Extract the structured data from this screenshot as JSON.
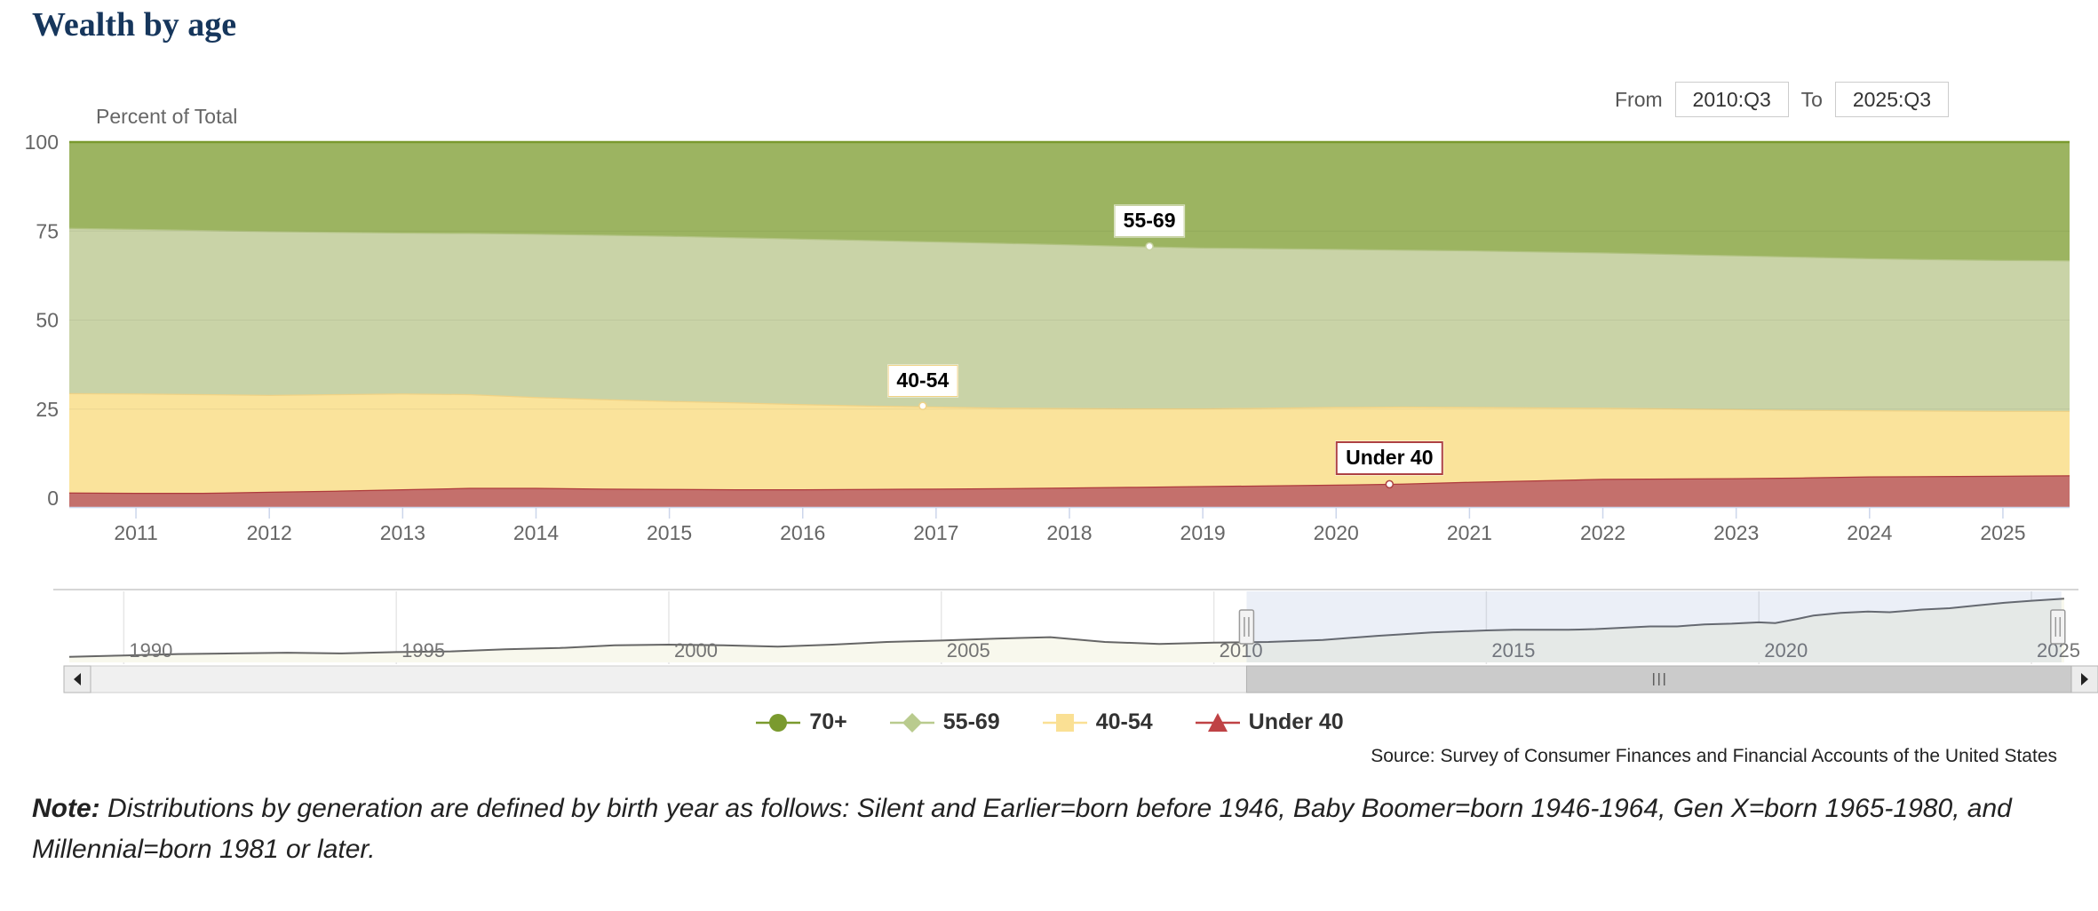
{
  "header": {
    "title": "Wealth by age"
  },
  "controls": {
    "from_label": "From",
    "from_value": "2010:Q3",
    "to_label": "To",
    "to_value": "2025:Q3"
  },
  "chart_data": {
    "type": "area",
    "stacking": "percent",
    "title": "Wealth by age",
    "unit_label": "Percent of Total",
    "ylim": [
      0,
      100
    ],
    "y_ticks": [
      0,
      25,
      50,
      75,
      100
    ],
    "x_ticks": [
      2011,
      2012,
      2013,
      2014,
      2015,
      2016,
      2017,
      2018,
      2019,
      2020,
      2021,
      2022,
      2023,
      2024,
      2025
    ],
    "x_range": [
      2010.5,
      2025.5
    ],
    "x": [
      2010.5,
      2011,
      2011.5,
      2012,
      2012.5,
      2013,
      2013.5,
      2014,
      2014.5,
      2015,
      2015.5,
      2016,
      2016.5,
      2017,
      2017.5,
      2018,
      2018.5,
      2019,
      2019.5,
      2020,
      2020.5,
      2021,
      2021.5,
      2022,
      2022.5,
      2023,
      2023.5,
      2024,
      2024.5,
      2025,
      2025.5
    ],
    "series": [
      {
        "name": "70+",
        "line_color": "#7a9a2e",
        "fill_color": "#9cb461",
        "legend_color": "#7a9a2e",
        "marker": "circle",
        "values": [
          24.1,
          24.4,
          24.7,
          25.0,
          25.2,
          25.4,
          25.5,
          25.7,
          26.0,
          26.3,
          26.7,
          27.1,
          27.5,
          27.9,
          28.3,
          28.7,
          29.2,
          29.6,
          29.8,
          30.0,
          30.2,
          30.4,
          30.7,
          31.0,
          31.4,
          31.8,
          32.2,
          32.6,
          32.9,
          33.1,
          33.2
        ]
      },
      {
        "name": "55-69",
        "line_color": "#b2c383",
        "fill_color": "#c9d3a7",
        "legend_color": "#b9cb8e",
        "marker": "diamond",
        "values": [
          46.4,
          46.2,
          46.1,
          46.0,
          45.6,
          45.2,
          45.3,
          45.9,
          46.2,
          46.4,
          46.4,
          46.5,
          46.5,
          46.4,
          46.3,
          46.0,
          45.6,
          45.2,
          44.8,
          44.4,
          44.1,
          44.0,
          43.8,
          43.6,
          43.4,
          43.2,
          43.0,
          42.7,
          42.5,
          42.4,
          42.3
        ]
      },
      {
        "name": "40-54",
        "line_color": "#f0d285",
        "fill_color": "#fae39b",
        "legend_color": "#fae094",
        "marker": "square",
        "values": [
          27.9,
          27.9,
          27.7,
          27.2,
          27.1,
          26.9,
          26.3,
          25.5,
          25.1,
          24.7,
          24.4,
          23.9,
          23.4,
          23.0,
          22.6,
          22.3,
          22.0,
          21.8,
          21.8,
          21.8,
          21.6,
          21.0,
          20.5,
          20.0,
          19.7,
          19.4,
          19.0,
          18.6,
          18.4,
          18.2,
          18.1
        ]
      },
      {
        "name": "Under 40",
        "line_color": "#ae3a3c",
        "fill_color": "#c4706c",
        "legend_color": "#bf4245",
        "marker": "triangle",
        "values": [
          1.6,
          1.5,
          1.5,
          1.8,
          2.1,
          2.5,
          2.9,
          2.9,
          2.7,
          2.6,
          2.5,
          2.5,
          2.6,
          2.7,
          2.8,
          3.0,
          3.2,
          3.4,
          3.6,
          3.8,
          4.1,
          4.6,
          5.0,
          5.4,
          5.5,
          5.6,
          5.8,
          6.1,
          6.2,
          6.3,
          6.4
        ]
      }
    ],
    "annotations": [
      {
        "text": "55-69",
        "year": 2018.6,
        "value": 70.7,
        "border_color": "#c6d1a0",
        "border_width": 1.5
      },
      {
        "text": "40-54",
        "year": 2016.9,
        "value": 25.9,
        "border_color": "#f0d285",
        "border_width": 1.5
      },
      {
        "text": "Under 40",
        "year": 2020.4,
        "value": 3.9,
        "border_color": "#ae4143",
        "border_width": 2
      }
    ],
    "navigator": {
      "x_range": [
        1989,
        2025.7
      ],
      "x_ticks": [
        1990,
        1995,
        2000,
        2005,
        2010,
        2015,
        2020,
        2025
      ],
      "selected_range": [
        2010.6,
        2025.55
      ],
      "line_color": "#666666",
      "fill_color": "#f8f8ed",
      "mask_color": "rgba(102,133,194,0.13)",
      "line": [
        [
          1989,
          0.07
        ],
        [
          1990,
          0.09
        ],
        [
          1991,
          0.11
        ],
        [
          1992,
          0.12
        ],
        [
          1993,
          0.13
        ],
        [
          1994,
          0.12
        ],
        [
          1995,
          0.14
        ],
        [
          1996,
          0.15
        ],
        [
          1997,
          0.18
        ],
        [
          1998,
          0.2
        ],
        [
          1999,
          0.24
        ],
        [
          2000,
          0.25
        ],
        [
          2001,
          0.24
        ],
        [
          2002,
          0.22
        ],
        [
          2003,
          0.25
        ],
        [
          2004,
          0.29
        ],
        [
          2005,
          0.31
        ],
        [
          2006,
          0.34
        ],
        [
          2007,
          0.36
        ],
        [
          2008,
          0.29
        ],
        [
          2009,
          0.26
        ],
        [
          2010,
          0.28
        ],
        [
          2011,
          0.29
        ],
        [
          2012,
          0.32
        ],
        [
          2013,
          0.38
        ],
        [
          2014,
          0.43
        ],
        [
          2015,
          0.46
        ],
        [
          2015.5,
          0.47
        ],
        [
          2016,
          0.47
        ],
        [
          2016.5,
          0.47
        ],
        [
          2017,
          0.48
        ],
        [
          2017.5,
          0.5
        ],
        [
          2018,
          0.52
        ],
        [
          2018.5,
          0.52
        ],
        [
          2019,
          0.55
        ],
        [
          2019.5,
          0.56
        ],
        [
          2020,
          0.58
        ],
        [
          2020.3,
          0.57
        ],
        [
          2020.7,
          0.63
        ],
        [
          2021,
          0.68
        ],
        [
          2021.5,
          0.72
        ],
        [
          2022,
          0.74
        ],
        [
          2022.4,
          0.73
        ],
        [
          2023,
          0.77
        ],
        [
          2023.5,
          0.79
        ],
        [
          2024,
          0.83
        ],
        [
          2024.5,
          0.87
        ],
        [
          2025,
          0.9
        ],
        [
          2025.6,
          0.93
        ]
      ]
    },
    "legend_position": "bottom-center",
    "grid": "horizontal-faint",
    "axis_color": "#ccd6eb",
    "label_color": "#666666"
  },
  "source": "Source: Survey of Consumer Finances and Financial Accounts of the United States",
  "note": {
    "label": "Note:",
    "text": " Distributions by generation are defined by birth year as follows: Silent and Earlier=born before 1946, Baby Boomer=born 1946-1964, Gen X=born 1965-1980, and Millennial=born 1981 or later."
  }
}
